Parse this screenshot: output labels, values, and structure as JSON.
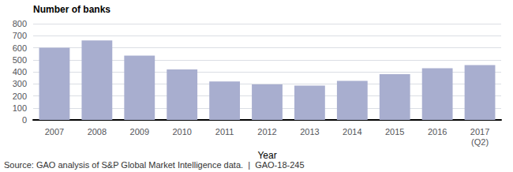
{
  "chart_data": {
    "type": "bar",
    "ylabel": "Number of banks",
    "xlabel": "Year",
    "categories": [
      "2007",
      "2008",
      "2009",
      "2010",
      "2011",
      "2012",
      "2013",
      "2014",
      "2015",
      "2016",
      "2017\n(Q2)"
    ],
    "values": [
      600,
      660,
      535,
      420,
      320,
      295,
      285,
      325,
      380,
      430,
      455
    ],
    "color": "#a8aecf",
    "ylim": [
      0,
      800
    ],
    "yticks": [
      0,
      100,
      200,
      300,
      400,
      500,
      600,
      700,
      800
    ],
    "grid": true,
    "annotations": [
      "Source: GAO analysis of S&P Global Market Intelligence data.  |  GAO-18-245"
    ]
  }
}
